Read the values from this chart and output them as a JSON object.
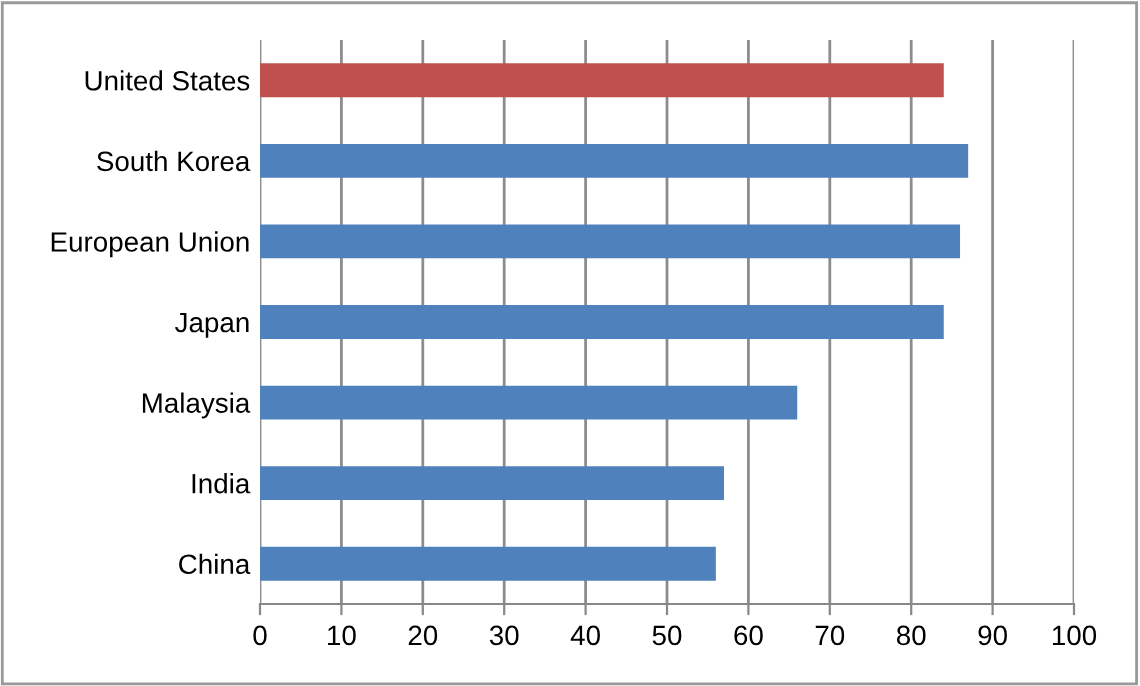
{
  "chart_data": {
    "type": "bar",
    "orientation": "horizontal",
    "categories": [
      "United States",
      "South Korea",
      "European Union",
      "Japan",
      "Malaysia",
      "India",
      "China"
    ],
    "values": [
      84,
      87,
      86,
      84,
      66,
      57,
      56
    ],
    "colors": [
      "#c0504d",
      "#4f81bd",
      "#4f81bd",
      "#4f81bd",
      "#4f81bd",
      "#4f81bd",
      "#4f81bd"
    ],
    "xlim": [
      0,
      100
    ],
    "xticks": [
      0,
      10,
      20,
      30,
      40,
      50,
      60,
      70,
      80,
      90,
      100
    ],
    "grid": "x",
    "legend": false
  }
}
